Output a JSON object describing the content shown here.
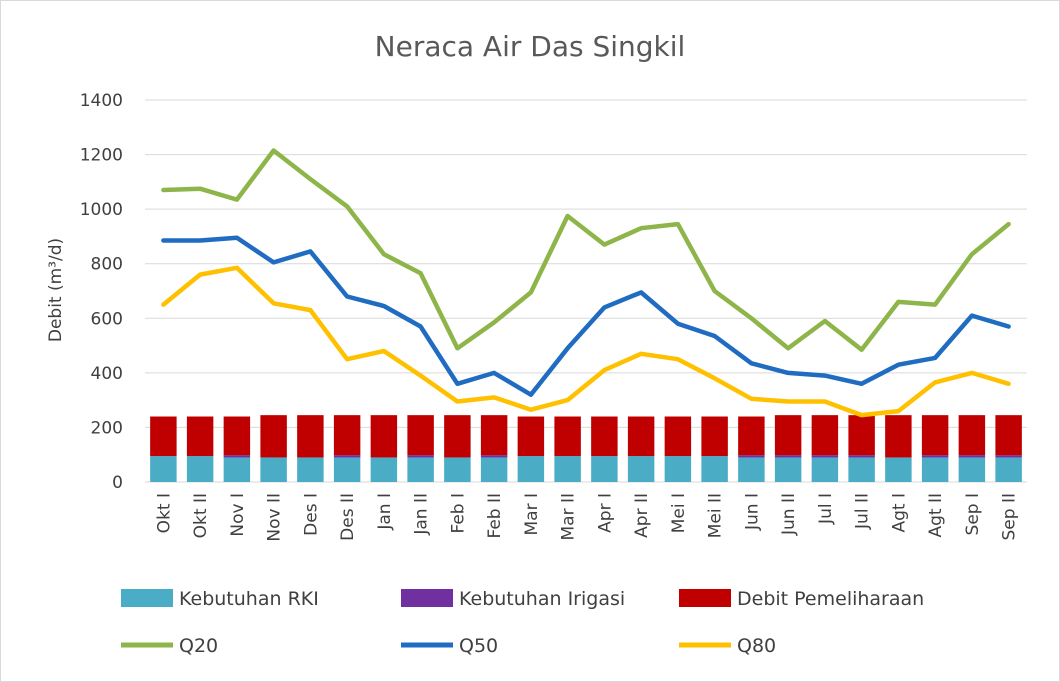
{
  "chart_data": {
    "type": "bar",
    "title": "Neraca Air Das Singkil",
    "xlabel": "",
    "ylabel": "Debit (m³/d)",
    "ylim": [
      0,
      1400
    ],
    "yticks": [
      0,
      200,
      400,
      600,
      800,
      1000,
      1200,
      1400
    ],
    "grid": true,
    "legend_position": "bottom",
    "categories": [
      "Okt I",
      "Okt II",
      "Nov I",
      "Nov II",
      "Des I",
      "Des II",
      "Jan I",
      "Jan II",
      "Feb I",
      "Feb II",
      "Mar I",
      "Mar II",
      "Apr I",
      "Apr II",
      "Mei I",
      "Mei II",
      "Jun I",
      "Jun II",
      "Jul I",
      "Jul II",
      "Agt I",
      "Agt II",
      "Sep I",
      "Sep II"
    ],
    "bar_series": [
      {
        "name": "Kebutuhan RKI",
        "color": "#4bacc6",
        "values": [
          95,
          95,
          90,
          90,
          90,
          90,
          90,
          90,
          90,
          90,
          95,
          95,
          95,
          95,
          95,
          95,
          90,
          90,
          90,
          90,
          90,
          90,
          90,
          90
        ]
      },
      {
        "name": "Kebutuhan Irigasi",
        "color": "#7030a0",
        "values": [
          0,
          0,
          8,
          0,
          0,
          8,
          0,
          8,
          0,
          8,
          0,
          0,
          0,
          0,
          0,
          0,
          8,
          8,
          8,
          8,
          0,
          8,
          8,
          8
        ]
      },
      {
        "name": "Debit Pemeliharaan",
        "color": "#c00000",
        "values": [
          145,
          145,
          142,
          155,
          155,
          147,
          155,
          147,
          155,
          147,
          145,
          145,
          145,
          145,
          145,
          145,
          142,
          147,
          147,
          147,
          155,
          147,
          147,
          147
        ]
      }
    ],
    "line_series": [
      {
        "name": "Q20",
        "color": "#8db54a",
        "values": [
          1070,
          1075,
          1035,
          1215,
          1110,
          1010,
          835,
          765,
          490,
          585,
          695,
          975,
          870,
          930,
          945,
          700,
          600,
          490,
          590,
          485,
          660,
          650,
          835,
          945
        ]
      },
      {
        "name": "Q50",
        "color": "#1f6cc1",
        "values": [
          885,
          885,
          895,
          805,
          845,
          680,
          645,
          570,
          360,
          400,
          320,
          490,
          640,
          695,
          580,
          535,
          435,
          400,
          390,
          360,
          430,
          455,
          610,
          570
        ]
      },
      {
        "name": "Q80",
        "color": "#ffc000",
        "values": [
          650,
          760,
          785,
          655,
          630,
          450,
          480,
          390,
          295,
          310,
          265,
          300,
          410,
          470,
          450,
          380,
          305,
          295,
          295,
          245,
          260,
          365,
          400,
          360
        ]
      }
    ]
  }
}
